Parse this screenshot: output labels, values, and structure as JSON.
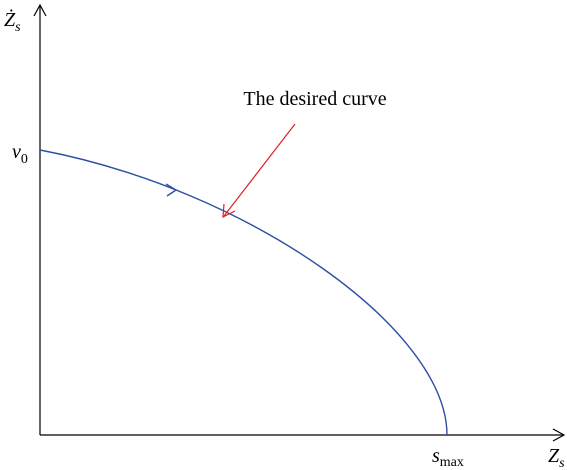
{
  "y_axis_label": {
    "base": "Ż",
    "sub": "s"
  },
  "x_axis_label": {
    "base": "Z",
    "sub": "s"
  },
  "y_intercept_label": {
    "base": "v",
    "sub": "0"
  },
  "x_intercept_label": {
    "base": "s",
    "sub": "max"
  },
  "annotation": "The desired curve"
}
